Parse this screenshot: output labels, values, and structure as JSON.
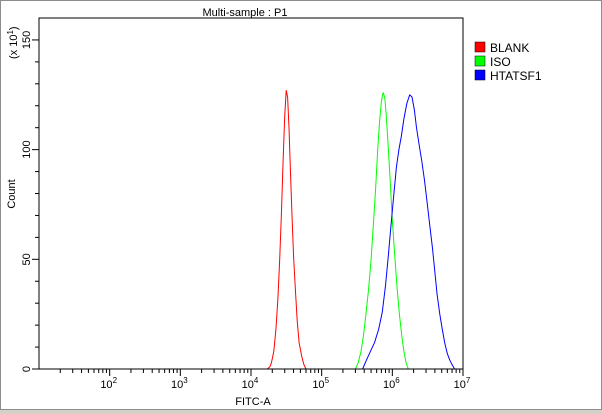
{
  "chart_data": {
    "type": "line",
    "title": "Multi-sample : P1",
    "xlabel": "FITC-A",
    "ylabel": "Count",
    "y_multiplier": "(x 10",
    "y_multiplier_exp": "1",
    "y_multiplier_close": ")",
    "x_scale": "log",
    "xlim": [
      10,
      10000000
    ],
    "ylim": [
      0,
      160
    ],
    "x_ticks": [
      {
        "value": 100,
        "base": "10",
        "exp": "2"
      },
      {
        "value": 1000,
        "base": "10",
        "exp": "3"
      },
      {
        "value": 10000,
        "base": "10",
        "exp": "4"
      },
      {
        "value": 100000,
        "base": "10",
        "exp": "5"
      },
      {
        "value": 1000000,
        "base": "10",
        "exp": "6"
      },
      {
        "value": 10000000,
        "base": "10",
        "exp": "7"
      }
    ],
    "y_ticks": [
      {
        "value": 0,
        "label": "0"
      },
      {
        "value": 50,
        "label": "50"
      },
      {
        "value": 100,
        "label": "100"
      },
      {
        "value": 150,
        "label": "150"
      }
    ],
    "legend_position": "top-right",
    "series": [
      {
        "name": "BLANK",
        "color": "#ff0000",
        "points": [
          [
            17000,
            0
          ],
          [
            18500,
            1
          ],
          [
            19500,
            3
          ],
          [
            21000,
            8
          ],
          [
            22500,
            18
          ],
          [
            24000,
            32
          ],
          [
            25500,
            50
          ],
          [
            27000,
            72
          ],
          [
            28500,
            95
          ],
          [
            30000,
            115
          ],
          [
            31500,
            127
          ],
          [
            33000,
            124
          ],
          [
            34500,
            110
          ],
          [
            36000,
            92
          ],
          [
            38000,
            70
          ],
          [
            40000,
            52
          ],
          [
            42500,
            36
          ],
          [
            45000,
            22
          ],
          [
            48000,
            12
          ],
          [
            52000,
            6
          ],
          [
            56000,
            2
          ],
          [
            60000,
            0
          ]
        ]
      },
      {
        "name": "ISO",
        "color": "#00ff00",
        "points": [
          [
            300000,
            0
          ],
          [
            330000,
            3
          ],
          [
            360000,
            8
          ],
          [
            390000,
            15
          ],
          [
            420000,
            24
          ],
          [
            460000,
            36
          ],
          [
            500000,
            50
          ],
          [
            540000,
            66
          ],
          [
            580000,
            82
          ],
          [
            620000,
            100
          ],
          [
            660000,
            113
          ],
          [
            700000,
            122
          ],
          [
            740000,
            126
          ],
          [
            780000,
            124
          ],
          [
            820000,
            116
          ],
          [
            880000,
            100
          ],
          [
            940000,
            84
          ],
          [
            1000000,
            68
          ],
          [
            1080000,
            52
          ],
          [
            1160000,
            38
          ],
          [
            1260000,
            25
          ],
          [
            1360000,
            15
          ],
          [
            1460000,
            8
          ],
          [
            1560000,
            3
          ],
          [
            1680000,
            0
          ]
        ]
      },
      {
        "name": "HTATSF1",
        "color": "#0000ff",
        "points": [
          [
            380000,
            0
          ],
          [
            430000,
            4
          ],
          [
            490000,
            8
          ],
          [
            560000,
            12
          ],
          [
            640000,
            18
          ],
          [
            720000,
            26
          ],
          [
            800000,
            38
          ],
          [
            880000,
            52
          ],
          [
            960000,
            66
          ],
          [
            1040000,
            78
          ],
          [
            1140000,
            92
          ],
          [
            1240000,
            100
          ],
          [
            1340000,
            106
          ],
          [
            1460000,
            114
          ],
          [
            1600000,
            121
          ],
          [
            1760000,
            125
          ],
          [
            1900000,
            124
          ],
          [
            2050000,
            118
          ],
          [
            2200000,
            110
          ],
          [
            2400000,
            102
          ],
          [
            2600000,
            95
          ],
          [
            2850000,
            86
          ],
          [
            3100000,
            76
          ],
          [
            3400000,
            65
          ],
          [
            3700000,
            55
          ],
          [
            4000000,
            44
          ],
          [
            4300000,
            34
          ],
          [
            4700000,
            25
          ],
          [
            5100000,
            18
          ],
          [
            5500000,
            12
          ],
          [
            6000000,
            7
          ],
          [
            6500000,
            4
          ],
          [
            7000000,
            2
          ],
          [
            7600000,
            0
          ]
        ]
      }
    ]
  }
}
